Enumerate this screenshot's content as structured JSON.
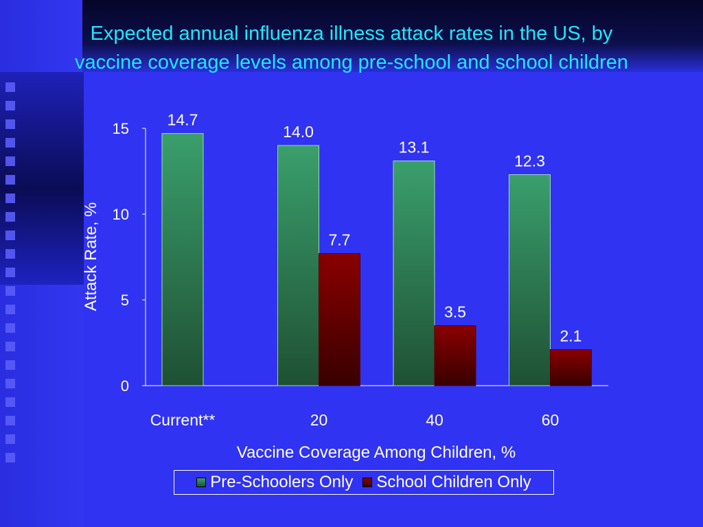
{
  "title_line1": "Expected annual influenza illness attack rates in the US, by",
  "title_line2": "vaccine coverage levels among pre-school and school children",
  "chart_data": {
    "type": "bar",
    "categories": [
      "Current**",
      "20",
      "40",
      "60"
    ],
    "series": [
      {
        "name": "Pre-Schoolers Only",
        "values": [
          14.7,
          14.0,
          13.1,
          12.3
        ],
        "labels": [
          "14.7",
          "14.0",
          "13.1",
          "12.3"
        ],
        "color": "#3a9f6c"
      },
      {
        "name": "School Children Only",
        "values": [
          null,
          7.7,
          3.5,
          2.1
        ],
        "labels": [
          "",
          "7.7",
          "3.5",
          "2.1"
        ],
        "color": "#8a0000"
      }
    ],
    "xlabel": "Vaccine Coverage Among Children, %",
    "ylabel": "Attack Rate, %",
    "ylim": [
      0,
      15
    ],
    "yticks": [
      0,
      5,
      10,
      15
    ],
    "grid": false,
    "legend": "bottom"
  }
}
